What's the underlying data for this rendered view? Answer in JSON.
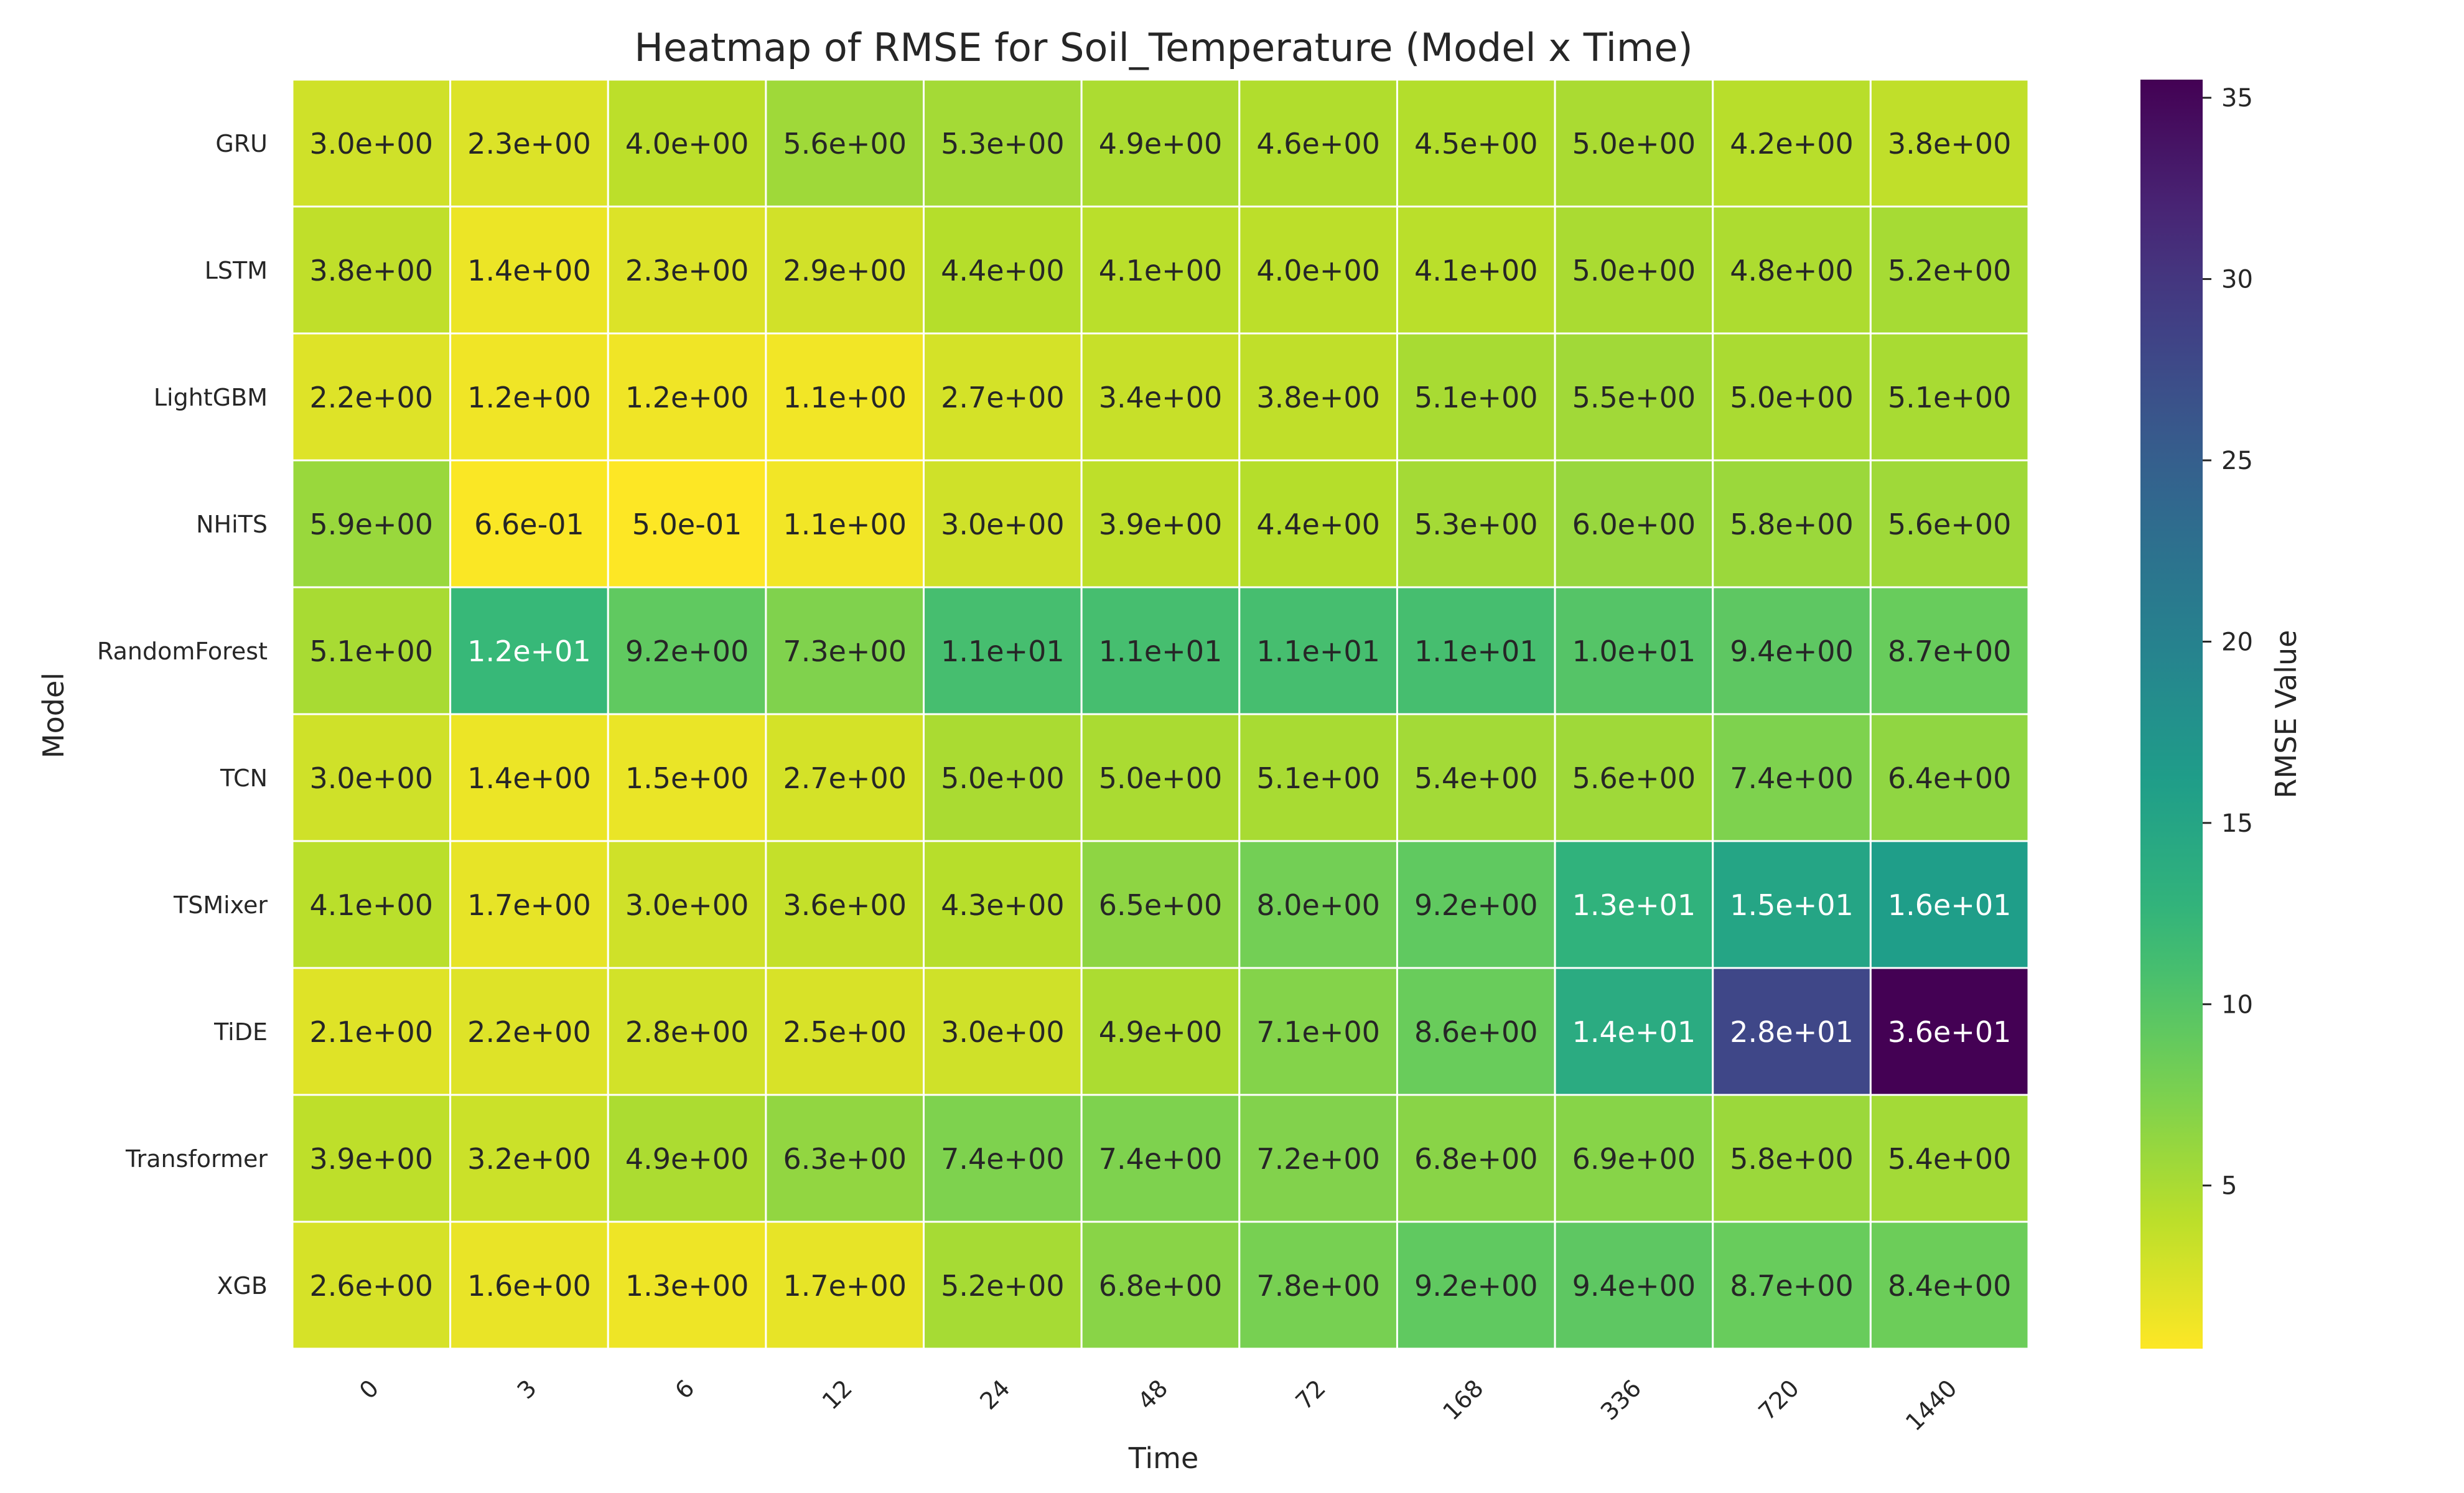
{
  "chart_data": {
    "type": "heatmap",
    "title": "Heatmap of RMSE for Soil_Temperature (Model x Time)",
    "xlabel": "Time",
    "ylabel": "Model",
    "x": [
      "0",
      "3",
      "6",
      "12",
      "24",
      "48",
      "72",
      "168",
      "336",
      "720",
      "1440"
    ],
    "y": [
      "GRU",
      "LSTM",
      "LightGBM",
      "NHiTS",
      "RandomForest",
      "TCN",
      "TSMixer",
      "TiDE",
      "Transformer",
      "XGB"
    ],
    "values": [
      [
        3.0,
        2.3,
        4.0,
        5.6,
        5.3,
        4.9,
        4.6,
        4.5,
        5.0,
        4.2,
        3.8
      ],
      [
        3.8,
        1.4,
        2.3,
        2.9,
        4.4,
        4.1,
        4.0,
        4.1,
        5.0,
        4.8,
        5.2
      ],
      [
        2.2,
        1.2,
        1.2,
        1.1,
        2.7,
        3.4,
        3.8,
        5.1,
        5.5,
        5.0,
        5.1
      ],
      [
        5.9,
        0.66,
        0.5,
        1.1,
        3.0,
        3.9,
        4.4,
        5.3,
        6.0,
        5.8,
        5.6
      ],
      [
        5.1,
        12,
        9.2,
        7.3,
        11,
        11,
        11,
        11,
        10,
        9.4,
        8.7
      ],
      [
        3.0,
        1.4,
        1.5,
        2.7,
        5.0,
        5.0,
        5.1,
        5.4,
        5.6,
        7.4,
        6.4
      ],
      [
        4.1,
        1.7,
        3.0,
        3.6,
        4.3,
        6.5,
        8.0,
        9.2,
        13,
        15,
        16
      ],
      [
        2.1,
        2.2,
        2.8,
        2.5,
        3.0,
        4.9,
        7.1,
        8.6,
        14,
        28,
        36
      ],
      [
        3.9,
        3.2,
        4.9,
        6.3,
        7.4,
        7.4,
        7.2,
        6.8,
        6.9,
        5.8,
        5.4
      ],
      [
        2.6,
        1.6,
        1.3,
        1.7,
        5.2,
        6.8,
        7.8,
        9.2,
        9.4,
        8.7,
        8.4
      ]
    ],
    "cell_labels": [
      [
        "3.0e+00",
        "2.3e+00",
        "4.0e+00",
        "5.6e+00",
        "5.3e+00",
        "4.9e+00",
        "4.6e+00",
        "4.5e+00",
        "5.0e+00",
        "4.2e+00",
        "3.8e+00"
      ],
      [
        "3.8e+00",
        "1.4e+00",
        "2.3e+00",
        "2.9e+00",
        "4.4e+00",
        "4.1e+00",
        "4.0e+00",
        "4.1e+00",
        "5.0e+00",
        "4.8e+00",
        "5.2e+00"
      ],
      [
        "2.2e+00",
        "1.2e+00",
        "1.2e+00",
        "1.1e+00",
        "2.7e+00",
        "3.4e+00",
        "3.8e+00",
        "5.1e+00",
        "5.5e+00",
        "5.0e+00",
        "5.1e+00"
      ],
      [
        "5.9e+00",
        "6.6e-01",
        "5.0e-01",
        "1.1e+00",
        "3.0e+00",
        "3.9e+00",
        "4.4e+00",
        "5.3e+00",
        "6.0e+00",
        "5.8e+00",
        "5.6e+00"
      ],
      [
        "5.1e+00",
        "1.2e+01",
        "9.2e+00",
        "7.3e+00",
        "1.1e+01",
        "1.1e+01",
        "1.1e+01",
        "1.1e+01",
        "1.0e+01",
        "9.4e+00",
        "8.7e+00"
      ],
      [
        "3.0e+00",
        "1.4e+00",
        "1.5e+00",
        "2.7e+00",
        "5.0e+00",
        "5.0e+00",
        "5.1e+00",
        "5.4e+00",
        "5.6e+00",
        "7.4e+00",
        "6.4e+00"
      ],
      [
        "4.1e+00",
        "1.7e+00",
        "3.0e+00",
        "3.6e+00",
        "4.3e+00",
        "6.5e+00",
        "8.0e+00",
        "9.2e+00",
        "1.3e+01",
        "1.5e+01",
        "1.6e+01"
      ],
      [
        "2.1e+00",
        "2.2e+00",
        "2.8e+00",
        "2.5e+00",
        "3.0e+00",
        "4.9e+00",
        "7.1e+00",
        "8.6e+00",
        "1.4e+01",
        "2.8e+01",
        "3.6e+01"
      ],
      [
        "3.9e+00",
        "3.2e+00",
        "4.9e+00",
        "6.3e+00",
        "7.4e+00",
        "7.4e+00",
        "7.2e+00",
        "6.8e+00",
        "6.9e+00",
        "5.8e+00",
        "5.4e+00"
      ],
      [
        "2.6e+00",
        "1.6e+00",
        "1.3e+00",
        "1.7e+00",
        "5.2e+00",
        "6.8e+00",
        "7.8e+00",
        "9.2e+00",
        "9.4e+00",
        "8.7e+00",
        "8.4e+00"
      ]
    ],
    "colormap": "viridis_r",
    "vmin": 0.5,
    "vmax": 35.5,
    "colorbar": {
      "label": "RMSE Value",
      "ticks": [
        5,
        10,
        15,
        20,
        25,
        30,
        35
      ],
      "tick_labels": [
        "5",
        "10",
        "15",
        "20",
        "25",
        "30",
        "35"
      ]
    },
    "grid": false
  }
}
